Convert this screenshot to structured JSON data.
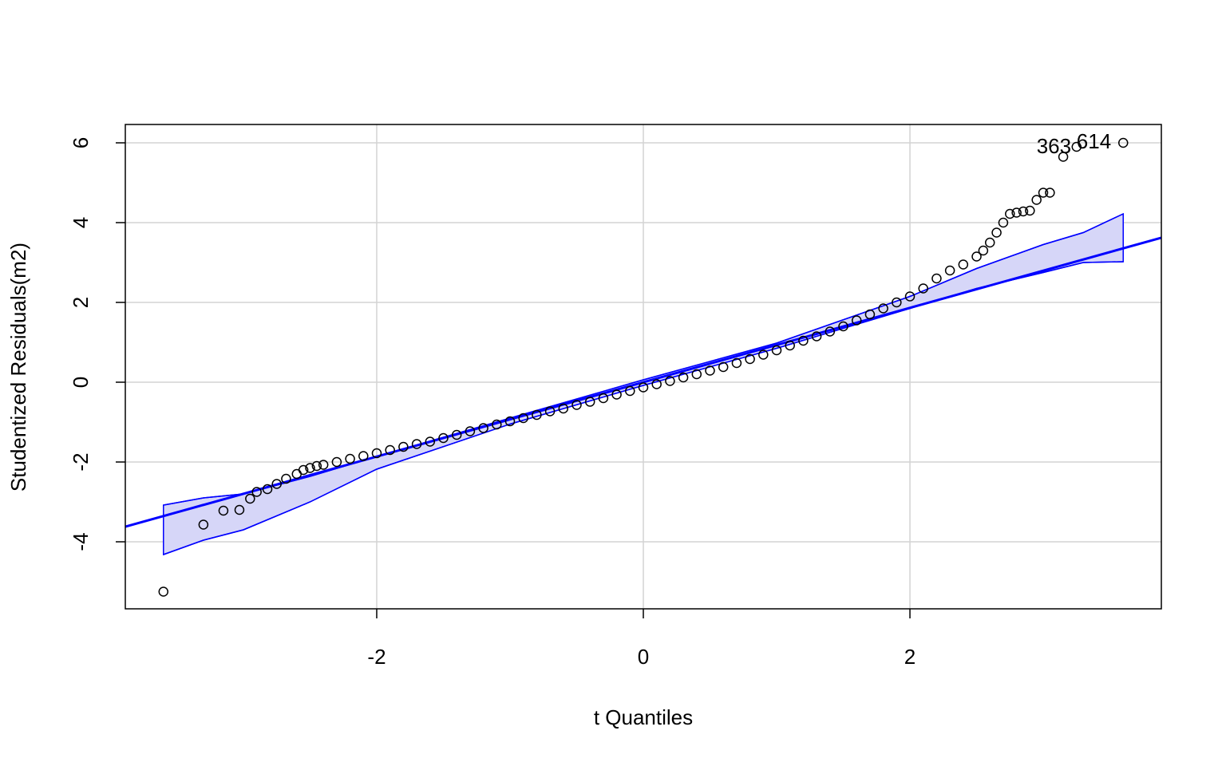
{
  "chart_data": {
    "type": "qqplot",
    "x_label": "t Quantiles",
    "y_label": "Studentized Residuals(m2)",
    "xlim": [
      -3.886,
      3.886
    ],
    "ylim": [
      -5.68,
      6.46
    ],
    "xticks": [
      -2,
      0,
      2
    ],
    "yticks": [
      -4,
      -2,
      0,
      2,
      4,
      6
    ],
    "grid": true,
    "point_color": "#000000",
    "line_color": "#0000ff",
    "envelope_fill": "#d6d6f8",
    "reference_line": {
      "intercept": 0,
      "slope": 0.932
    },
    "envelope": {
      "x": [
        -3.6,
        -3.3,
        -3.0,
        -2.5,
        -2.0,
        -1.0,
        0.0,
        1.0,
        2.0,
        2.5,
        3.0,
        3.3,
        3.6
      ],
      "lower": [
        -4.32,
        -3.96,
        -3.7,
        -3.0,
        -2.18,
        -1.05,
        -0.08,
        0.85,
        1.85,
        2.35,
        2.75,
        3.0,
        3.02
      ],
      "upper": [
        -3.08,
        -2.9,
        -2.8,
        -2.36,
        -1.86,
        -0.9,
        0.06,
        0.98,
        2.15,
        2.85,
        3.45,
        3.75,
        4.22
      ]
    },
    "x": [
      -3.6,
      -3.3,
      -3.15,
      -3.03,
      -2.95,
      -2.9,
      -2.82,
      -2.75,
      -2.68,
      -2.6,
      -2.55,
      -2.5,
      -2.45,
      -2.4,
      -2.3,
      -2.2,
      -2.1,
      -2.0,
      -1.9,
      -1.8,
      -1.7,
      -1.6,
      -1.5,
      -1.4,
      -1.3,
      -1.2,
      -1.1,
      -1.0,
      -0.9,
      -0.8,
      -0.7,
      -0.6,
      -0.5,
      -0.4,
      -0.3,
      -0.2,
      -0.1,
      0.0,
      0.1,
      0.2,
      0.3,
      0.4,
      0.5,
      0.6,
      0.7,
      0.8,
      0.9,
      1.0,
      1.1,
      1.2,
      1.3,
      1.4,
      1.5,
      1.6,
      1.7,
      1.8,
      1.9,
      2.0,
      2.1,
      2.2,
      2.3,
      2.4,
      2.5,
      2.55,
      2.6,
      2.65,
      2.7,
      2.75,
      2.8,
      2.85,
      2.9,
      2.95,
      3.0,
      3.05,
      3.15,
      3.25,
      3.6
    ],
    "values": [
      -5.25,
      -3.57,
      -3.22,
      -3.2,
      -2.92,
      -2.75,
      -2.68,
      -2.55,
      -2.42,
      -2.3,
      -2.2,
      -2.15,
      -2.1,
      -2.07,
      -2.0,
      -1.92,
      -1.85,
      -1.78,
      -1.7,
      -1.62,
      -1.55,
      -1.49,
      -1.4,
      -1.32,
      -1.23,
      -1.15,
      -1.06,
      -0.98,
      -0.9,
      -0.82,
      -0.73,
      -0.66,
      -0.57,
      -0.49,
      -0.4,
      -0.31,
      -0.22,
      -0.13,
      -0.05,
      0.03,
      0.12,
      0.2,
      0.29,
      0.38,
      0.48,
      0.58,
      0.69,
      0.8,
      0.92,
      1.04,
      1.15,
      1.27,
      1.4,
      1.55,
      1.7,
      1.85,
      2.0,
      2.15,
      2.35,
      2.6,
      2.8,
      2.95,
      3.15,
      3.3,
      3.5,
      3.75,
      4.0,
      4.22,
      4.25,
      4.28,
      4.3,
      4.57,
      4.75,
      4.75,
      5.65,
      5.9,
      6.0
    ],
    "annotations": [
      {
        "text": "363",
        "x": 3.08,
        "y": 5.88
      },
      {
        "text": "614",
        "x": 3.38,
        "y": 6.0
      }
    ]
  }
}
